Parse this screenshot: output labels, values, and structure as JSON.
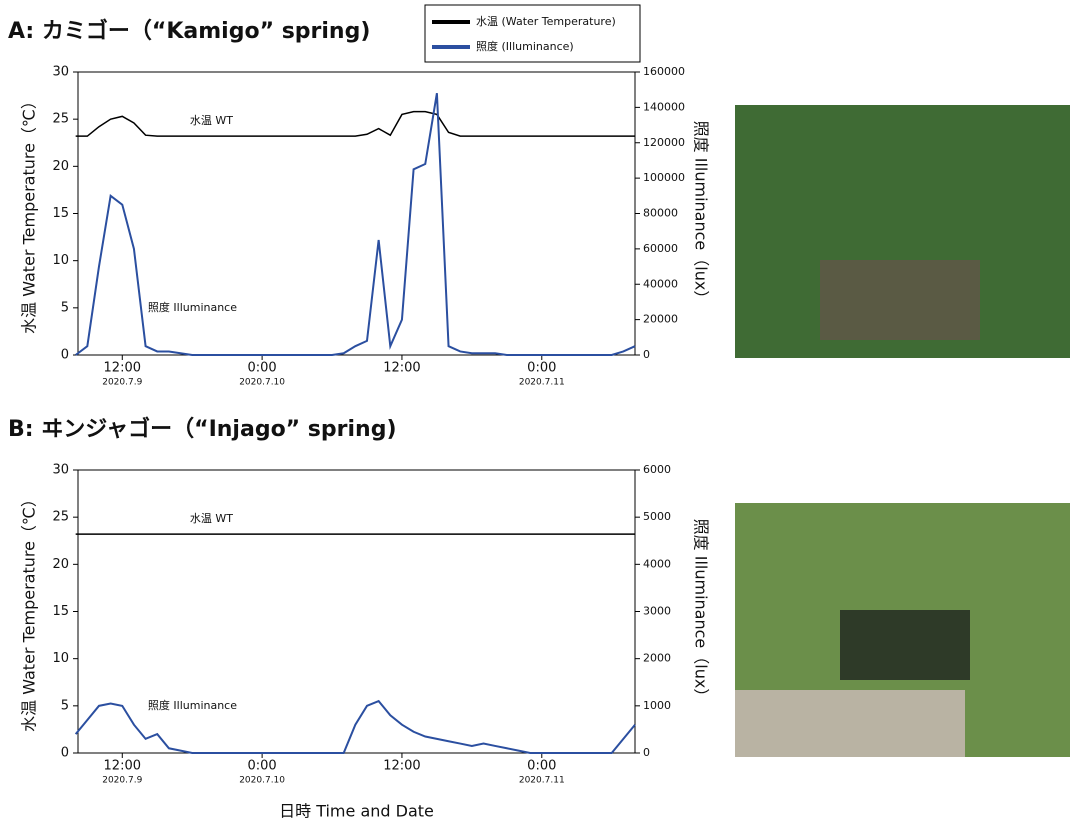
{
  "chart_data": [
    {
      "type": "line",
      "title": "A: カミゴー（“Kamigo” spring)",
      "legend": true,
      "ylabel": "水温 Water Temperature（℃）",
      "y2label": "照度 Illuminance（lux）",
      "x": [
        8,
        9,
        10,
        11,
        12,
        13,
        14,
        15,
        16,
        17,
        18,
        19,
        20,
        21,
        22,
        23,
        24,
        25,
        26,
        27,
        28,
        29,
        30,
        31,
        32,
        33,
        34,
        35,
        36,
        37,
        38,
        39,
        40,
        41,
        42,
        43,
        44,
        45,
        46,
        47,
        48,
        49,
        50,
        51,
        52,
        53,
        54,
        55,
        56
      ],
      "xlim": [
        8.2,
        56
      ],
      "xticks": [
        {
          "value": 12,
          "label": "12:00",
          "date": "2020.7.9"
        },
        {
          "value": 24,
          "label": "0:00",
          "date": "2020.7.10"
        },
        {
          "value": 36,
          "label": "12:00"
        },
        {
          "value": 48,
          "label": "0:00",
          "date": "2020.7.11"
        }
      ],
      "ylim": [
        0,
        30
      ],
      "yticks": [
        0,
        5,
        10,
        15,
        20,
        25,
        30
      ],
      "y2lim": [
        0,
        160000
      ],
      "y2ticks": [
        0,
        20000,
        40000,
        60000,
        80000,
        100000,
        120000,
        140000,
        160000
      ],
      "series": [
        {
          "name": "水温 (Water Temperature)",
          "color": "#000000",
          "axis": "y",
          "values": [
            23.2,
            23.2,
            24.2,
            25,
            25.3,
            24.6,
            23.3,
            23.2,
            23.2,
            23.2,
            23.2,
            23.2,
            23.2,
            23.2,
            23.2,
            23.2,
            23.2,
            23.2,
            23.2,
            23.2,
            23.2,
            23.2,
            23.2,
            23.2,
            23.2,
            23.4,
            24,
            23.3,
            25.5,
            25.8,
            25.8,
            25.5,
            23.6,
            23.2,
            23.2,
            23.2,
            23.2,
            23.2,
            23.2,
            23.2,
            23.2,
            23.2,
            23.2,
            23.2,
            23.2,
            23.2,
            23.2,
            23.2,
            23.2
          ]
        },
        {
          "name": "照度 (Illuminance)",
          "color": "#2b4fa0",
          "axis": "y2",
          "values": [
            0,
            5000,
            50000,
            90000,
            85000,
            60000,
            5000,
            2000,
            2000,
            1000,
            0,
            0,
            0,
            0,
            0,
            0,
            0,
            0,
            0,
            0,
            0,
            0,
            0,
            1000,
            5000,
            8000,
            65000,
            5000,
            20000,
            105000,
            108000,
            148000,
            5000,
            2000,
            1000,
            1000,
            1000,
            0,
            0,
            0,
            0,
            0,
            0,
            0,
            0,
            0,
            0,
            2000,
            5000
          ]
        }
      ],
      "annotations": [
        {
          "text": "水温 WT",
          "x": 17.8,
          "y": 24.8
        },
        {
          "text": "照度 Illuminance",
          "x": 14.2,
          "y": 5
        }
      ]
    },
    {
      "type": "line",
      "title": "B: ヰンジャゴー（“Injago” spring)",
      "legend": false,
      "ylabel": "水温 Water Temperature（℃）",
      "y2label": "照度 Illuminance（lux）",
      "xlabel": "日時 Time and Date",
      "x": [
        8,
        9,
        10,
        11,
        12,
        13,
        14,
        15,
        16,
        17,
        18,
        19,
        20,
        21,
        22,
        23,
        24,
        25,
        26,
        27,
        28,
        29,
        30,
        31,
        32,
        33,
        34,
        35,
        36,
        37,
        38,
        39,
        40,
        41,
        42,
        43,
        44,
        45,
        46,
        47,
        48,
        49,
        50,
        51,
        52,
        53,
        54,
        55,
        56
      ],
      "xlim": [
        8.2,
        56
      ],
      "xticks": [
        {
          "value": 12,
          "label": "12:00",
          "date": "2020.7.9"
        },
        {
          "value": 24,
          "label": "0:00",
          "date": "2020.7.10"
        },
        {
          "value": 36,
          "label": "12:00"
        },
        {
          "value": 48,
          "label": "0:00",
          "date": "2020.7.11"
        }
      ],
      "ylim": [
        0,
        30
      ],
      "yticks": [
        0,
        5,
        10,
        15,
        20,
        25,
        30
      ],
      "y2lim": [
        0,
        6000
      ],
      "y2ticks": [
        0,
        1000,
        2000,
        3000,
        4000,
        5000,
        6000
      ],
      "series": [
        {
          "color": "#000000",
          "axis": "y",
          "values": [
            23.2,
            23.2,
            23.2,
            23.2,
            23.2,
            23.2,
            23.2,
            23.2,
            23.2,
            23.2,
            23.2,
            23.2,
            23.2,
            23.2,
            23.2,
            23.2,
            23.2,
            23.2,
            23.2,
            23.2,
            23.2,
            23.2,
            23.2,
            23.2,
            23.2,
            23.2,
            23.2,
            23.2,
            23.2,
            23.2,
            23.2,
            23.2,
            23.2,
            23.2,
            23.2,
            23.2,
            23.2,
            23.2,
            23.2,
            23.2,
            23.2,
            23.2,
            23.2,
            23.2,
            23.2,
            23.2,
            23.2,
            23.2,
            23.2
          ]
        },
        {
          "color": "#2b4fa0",
          "axis": "y2",
          "values": [
            400,
            700,
            1000,
            1050,
            1000,
            600,
            300,
            400,
            100,
            50,
            0,
            0,
            0,
            0,
            0,
            0,
            0,
            0,
            0,
            0,
            0,
            0,
            0,
            0,
            600,
            1000,
            1100,
            800,
            600,
            450,
            350,
            300,
            250,
            200,
            150,
            200,
            150,
            100,
            50,
            0,
            0,
            0,
            0,
            0,
            0,
            0,
            0,
            300,
            600
          ]
        }
      ],
      "annotations": [
        {
          "text": "水温 WT",
          "x": 17.8,
          "y": 24.8
        },
        {
          "text": "照度 Illuminance",
          "x": 14.2,
          "y": 5
        }
      ]
    }
  ]
}
